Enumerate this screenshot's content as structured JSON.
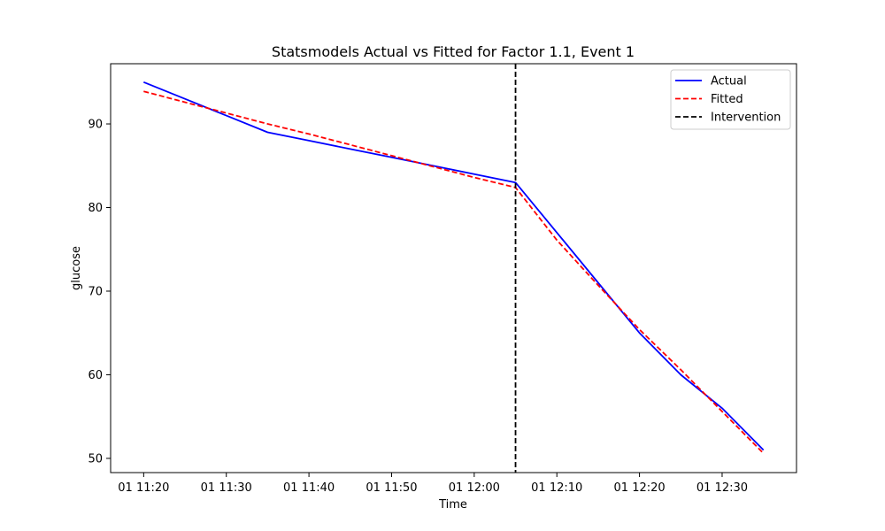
{
  "chart_data": {
    "type": "line",
    "title": "Statsmodels Actual vs Fitted for Factor 1.1, Event 1",
    "xlabel": "Time",
    "ylabel": "glucose",
    "x_ticks": [
      "01 11:20",
      "01 11:30",
      "01 11:40",
      "01 11:50",
      "01 12:00",
      "01 12:10",
      "01 12:20",
      "01 12:30"
    ],
    "y_ticks": [
      50,
      60,
      70,
      80,
      90
    ],
    "xlim": [
      "11:16",
      "12:39"
    ],
    "ylim": [
      48.3,
      97.2
    ],
    "x": [
      "11:20",
      "11:25",
      "11:30",
      "11:35",
      "11:40",
      "11:45",
      "11:50",
      "11:55",
      "12:00",
      "12:05",
      "12:10",
      "12:15",
      "12:20",
      "12:25",
      "12:30",
      "12:35"
    ],
    "series": [
      {
        "name": "Actual",
        "color": "#0000ff",
        "dash": "solid",
        "values": [
          95.0,
          93.0,
          91.0,
          89.0,
          88.0,
          87.0,
          86.0,
          85.0,
          84.0,
          83.0,
          77.0,
          71.0,
          65.0,
          60.0,
          56.0,
          51.0
        ]
      },
      {
        "name": "Fitted",
        "color": "#ff0000",
        "dash": "dashed",
        "values": [
          93.9,
          92.6,
          91.3,
          90.0,
          88.8,
          87.5,
          86.2,
          84.9,
          83.6,
          82.4,
          76.1,
          70.7,
          65.4,
          60.6,
          55.6,
          50.6
        ]
      }
    ],
    "vline": {
      "name": "Intervention",
      "x": "12:05",
      "color": "#000000",
      "dash": "dashed"
    },
    "legend_position": "top-right",
    "grid": false
  }
}
